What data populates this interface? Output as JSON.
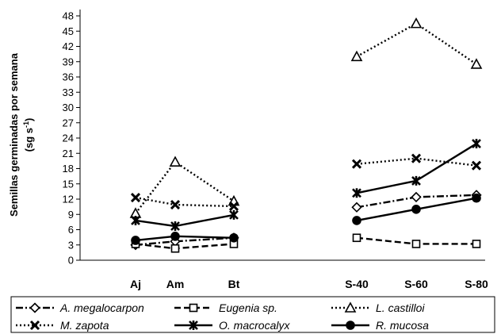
{
  "chart_data": {
    "type": "line",
    "ylabel_line1": "Semillas germinadas por semana",
    "ylabel_line2_prefix": "(sg s",
    "ylabel_line2_sup": "-1",
    "ylabel_line2_suffix": ")",
    "ylim": [
      0,
      48
    ],
    "yticks": [
      0,
      3,
      6,
      9,
      12,
      15,
      18,
      21,
      24,
      27,
      30,
      33,
      36,
      39,
      42,
      45,
      48
    ],
    "categories": [
      "Aj",
      "Am",
      "Bt",
      "S-40",
      "S-60",
      "S-80"
    ],
    "groups": [
      [
        0,
        1,
        2
      ],
      [
        3,
        4,
        5
      ]
    ],
    "grid": false,
    "legend_position": "bottom",
    "series": [
      {
        "name": "A. megalocarpon",
        "values": [
          3.0,
          3.7,
          4.4,
          10.4,
          12.4,
          12.8
        ],
        "dash": "dashdot",
        "marker": "diamond",
        "fill": "#ffffff"
      },
      {
        "name": "Eugenia sp.",
        "values": [
          3.2,
          2.3,
          3.2,
          4.4,
          3.2,
          3.2
        ],
        "dash": "dash",
        "marker": "square",
        "fill": "#ffffff"
      },
      {
        "name": "L. castilloi",
        "values": [
          9.2,
          19.3,
          11.6,
          40.0,
          46.5,
          38.5
        ],
        "dash": "dot",
        "marker": "triangle",
        "fill": "#ffffff"
      },
      {
        "name": "M. zapota",
        "values": [
          12.3,
          10.9,
          10.6,
          18.9,
          20.0,
          18.6
        ],
        "dash": "dot",
        "marker": "x",
        "fill": "#000000"
      },
      {
        "name": "O. macrocalyx",
        "values": [
          7.8,
          6.7,
          8.9,
          13.2,
          15.6,
          22.9
        ],
        "dash": "solid",
        "marker": "star",
        "fill": "#000000"
      },
      {
        "name": "R. mucosa",
        "values": [
          3.9,
          4.7,
          4.4,
          7.8,
          10.0,
          12.2
        ],
        "dash": "solid",
        "marker": "circle",
        "fill": "#000000"
      }
    ]
  }
}
